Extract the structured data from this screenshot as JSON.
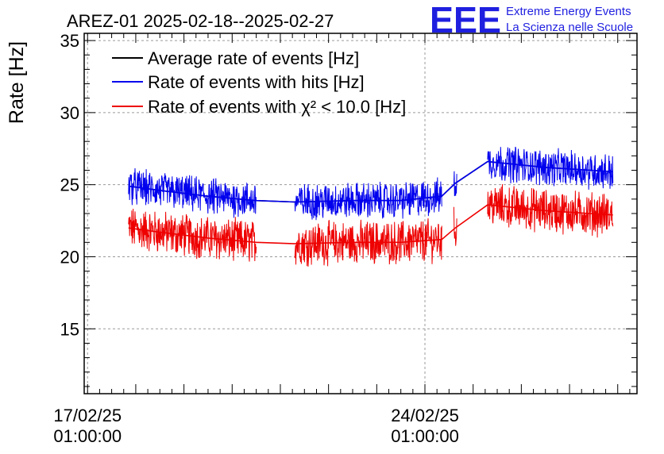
{
  "title": "AREZ-01 2025-02-18--2025-02-27",
  "logo": {
    "mark": "EEE",
    "line1": "Extreme Energy Events",
    "line2": "La Scienza nelle Scuole",
    "color": "#1f1fe0"
  },
  "chart_data": {
    "type": "line",
    "ylabel": "Rate [Hz]",
    "xlabel": "",
    "ylim": [
      10.5,
      35.5
    ],
    "xlim_days": [
      16.93,
      28.4
    ],
    "yticks": [
      15,
      20,
      25,
      30,
      35
    ],
    "xticks": [
      {
        "day": 17.0,
        "line1": "17/02/25",
        "line2": "01:00:00"
      },
      {
        "day": 24.0,
        "line1": "24/02/25",
        "line2": "01:00:00"
      }
    ],
    "grid": true,
    "legend_position": "top-left",
    "segments": [
      {
        "start": 17.85,
        "end": 20.5
      },
      {
        "start": 21.3,
        "end": 24.35
      },
      {
        "start": 24.6,
        "end": 24.66
      },
      {
        "start": 25.3,
        "end": 27.9
      }
    ],
    "series": [
      {
        "name": "Average rate of events [Hz]",
        "color": "#000000",
        "values": [
          {
            "x": 17.85,
            "y": 24.9
          },
          {
            "x": 18.5,
            "y": 24.6
          },
          {
            "x": 19.5,
            "y": 24.2
          },
          {
            "x": 20.5,
            "y": 23.9
          },
          {
            "x": 21.3,
            "y": 23.8
          },
          {
            "x": 22.5,
            "y": 23.9
          },
          {
            "x": 23.5,
            "y": 23.9
          },
          {
            "x": 24.35,
            "y": 24.2
          },
          {
            "x": 24.63,
            "y": 25.1
          },
          {
            "x": 25.3,
            "y": 26.6
          },
          {
            "x": 26.5,
            "y": 26.2
          },
          {
            "x": 27.9,
            "y": 25.9
          }
        ]
      },
      {
        "name": "Rate of events with hits [Hz]",
        "color": "#0000ee",
        "values": [
          {
            "x": 17.85,
            "y": 24.9
          },
          {
            "x": 18.5,
            "y": 24.6
          },
          {
            "x": 19.5,
            "y": 24.2
          },
          {
            "x": 20.5,
            "y": 23.9
          },
          {
            "x": 21.3,
            "y": 23.8
          },
          {
            "x": 22.5,
            "y": 23.9
          },
          {
            "x": 23.5,
            "y": 23.9
          },
          {
            "x": 24.35,
            "y": 24.2
          },
          {
            "x": 24.63,
            "y": 25.1
          },
          {
            "x": 25.3,
            "y": 26.6
          },
          {
            "x": 26.5,
            "y": 26.2
          },
          {
            "x": 27.9,
            "y": 25.9
          }
        ]
      },
      {
        "name": "Rate of events with χ² < 10.0 [Hz]",
        "color": "#ee0000",
        "values": [
          {
            "x": 17.85,
            "y": 22.0
          },
          {
            "x": 18.5,
            "y": 21.7
          },
          {
            "x": 19.5,
            "y": 21.3
          },
          {
            "x": 20.5,
            "y": 21.0
          },
          {
            "x": 21.3,
            "y": 20.9
          },
          {
            "x": 22.5,
            "y": 21.0
          },
          {
            "x": 23.5,
            "y": 21.0
          },
          {
            "x": 24.35,
            "y": 21.2
          },
          {
            "x": 24.63,
            "y": 22.0
          },
          {
            "x": 25.3,
            "y": 23.6
          },
          {
            "x": 26.5,
            "y": 23.2
          },
          {
            "x": 27.9,
            "y": 22.9
          }
        ]
      }
    ],
    "legend": [
      {
        "label_pre": "Rate of events with χ",
        "label_sup": "2",
        "label_post": " < 10.0 [Hz]"
      }
    ]
  }
}
